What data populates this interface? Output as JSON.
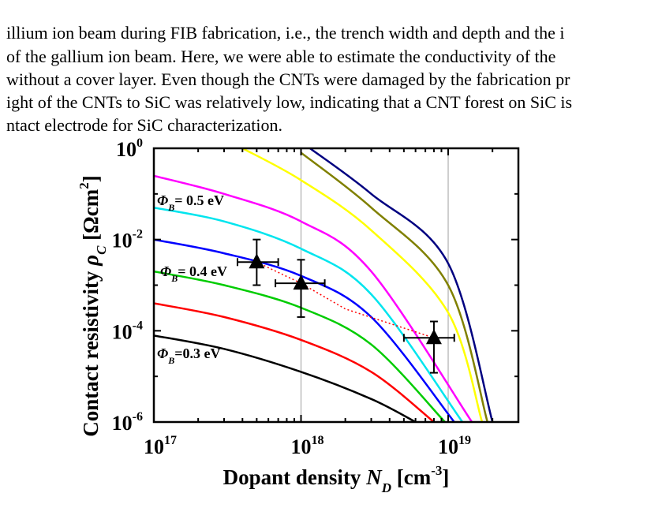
{
  "paragraph_lines": [
    "illium ion beam during FIB fabrication, i.e., the trench width and depth and the i",
    "of the gallium ion beam. Here, we were able to estimate the conductivity of the",
    "without a cover layer. Even though the CNTs were damaged by the fabrication pr",
    "ight of the CNTs to SiC was relatively low, indicating that a CNT forest on SiC is",
    "ntact electrode for SiC characterization."
  ],
  "chart_data": {
    "type": "line",
    "xlabel": "Dopant density N_D [cm^-3]",
    "ylabel": "Contact resistivity ρ_C [Ωcm^2]",
    "x_scale": "log",
    "y_scale": "log",
    "xlim": [
      1e+17,
      3e+19
    ],
    "ylim": [
      1e-06,
      1
    ],
    "x_ticks": [
      {
        "base": "10",
        "exp": "17"
      },
      {
        "base": "10",
        "exp": "18"
      },
      {
        "base": "10",
        "exp": "19"
      }
    ],
    "y_ticks": [
      {
        "base": "10",
        "exp": "0"
      },
      {
        "base": "10",
        "exp": "-2"
      },
      {
        "base": "10",
        "exp": "-4"
      },
      {
        "base": "10",
        "exp": "-6"
      }
    ],
    "grid": true,
    "annotations": [
      {
        "symbol": "Φ",
        "sub": "B",
        "text": "= 0.5 eV"
      },
      {
        "symbol": "Φ",
        "sub": "B",
        "text": "= 0.4 eV"
      },
      {
        "symbol": "Φ",
        "sub": "B",
        "text": "=0.3 eV"
      }
    ],
    "series": [
      {
        "color": "#000000",
        "x": [
          1e+17,
          3e+17,
          1e+18,
          3e+18,
          6e+18
        ],
        "y": [
          7.9e-05,
          4e-05,
          1.26e-05,
          3.2e-06,
          1e-06
        ]
      },
      {
        "color": "#ff0000",
        "x": [
          1e+17,
          3e+17,
          1e+18,
          3e+18,
          8e+18
        ],
        "y": [
          0.0004,
          0.0002,
          6.3e-05,
          1.26e-05,
          1e-06
        ]
      },
      {
        "color": "#00cc00",
        "x": [
          1e+17,
          3e+17,
          1e+18,
          3e+18,
          9.5e+18
        ],
        "y": [
          0.002,
          0.001,
          0.00032,
          5e-05,
          1e-06
        ]
      },
      {
        "color": "#0000ff",
        "x": [
          1e+17,
          3e+17,
          1e+18,
          3e+18,
          1.1e+19
        ],
        "y": [
          0.01,
          0.005,
          0.0016,
          0.0002,
          1e-06
        ]
      },
      {
        "color": "#00e5ee",
        "x": [
          1e+17,
          3e+17,
          1e+18,
          3e+18,
          1.25e+19
        ],
        "y": [
          0.05,
          0.025,
          0.0063,
          0.00063,
          1e-06
        ]
      },
      {
        "color": "#ff00ff",
        "x": [
          1e+17,
          3e+17,
          1e+18,
          3e+18,
          1.45e+19
        ],
        "y": [
          0.25,
          0.1,
          0.025,
          0.002,
          1e-06
        ]
      },
      {
        "color": "#ffff00",
        "x": [
          4e+17,
          1e+18,
          3e+18,
          1e+19,
          1.7e+19
        ],
        "y": [
          1,
          0.2,
          0.016,
          0.00025,
          1e-06
        ]
      },
      {
        "color": "#808000",
        "x": [
          1e+18,
          3e+18,
          1e+19,
          1.85e+19
        ],
        "y": [
          0.8,
          0.05,
          0.001,
          1e-06
        ]
      },
      {
        "color": "#000080",
        "x": [
          1.15e+18,
          3e+18,
          1e+19,
          2e+19
        ],
        "y": [
          1,
          0.1,
          0.003,
          1e-06
        ]
      }
    ],
    "fit_line": {
      "color": "#ff0000",
      "style": "dotted",
      "x": [
        5e+17,
        1e+18,
        2e+18,
        8e+18
      ],
      "y": [
        0.0032,
        0.0011,
        0.0003,
        7e-05
      ]
    },
    "measurements": [
      {
        "x": 5e+17,
        "y": 0.0032,
        "x_err": [
          3.7e+17,
          7e+17
        ],
        "y_err": [
          0.001,
          0.01
        ]
      },
      {
        "x": 1e+18,
        "y": 0.0011,
        "x_err": [
          6.7e+17,
          1.45e+18
        ],
        "y_err": [
          0.0002,
          0.0036
        ]
      },
      {
        "x": 8e+18,
        "y": 7e-05,
        "x_err": [
          5e+18,
          1.1e+19
        ],
        "y_err": [
          1.2e-05,
          0.00016
        ]
      }
    ]
  }
}
